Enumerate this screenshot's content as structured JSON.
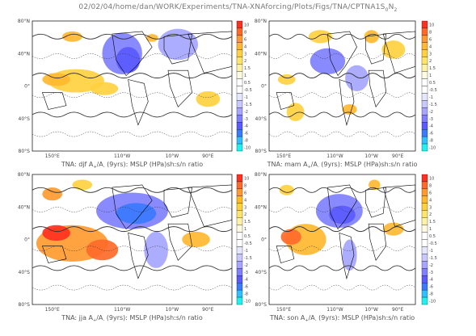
{
  "title": "02/02/04/home/dan/WORK/Experiments/TNA-XNAforcing/Plots/Figs/TNA/CPTNA1",
  "title_suffix": "S",
  "title_sub1": "0",
  "title_tail": "N",
  "title_sub2": "2",
  "colorbar_labels": [
    "10",
    "8",
    "6",
    "4",
    "3",
    "2",
    "1.5",
    "1",
    "0.5",
    "-0.5",
    "-1",
    "-1.5",
    "-2",
    "-3",
    "-4",
    "-6",
    "-8",
    "-10"
  ],
  "colorbar_colors": [
    "#ff3020",
    "#ff6a2a",
    "#ff9a30",
    "#ffb830",
    "#ffd040",
    "#ffe66a",
    "#fff2a6",
    "#fffbe0",
    "#ffffff",
    "#ffffff",
    "#e6e6ff",
    "#c8c8ff",
    "#a6a6ff",
    "#8080ff",
    "#5a5aff",
    "#3a7aff",
    "#30c0ff",
    "#20f0f0"
  ],
  "chart_data": [
    {
      "type": "heatmap",
      "panel": "djf",
      "caption_prefix": "TNA: djf A",
      "caption_mid": "/A",
      "caption_suffix": " (9yrs): MSLP (HPa)sh:s/n ratio",
      "sub_plus": "+",
      "sub_minus": "-",
      "ytick_labels": [
        "80°N",
        "40°N",
        "0°",
        "40°S",
        "80°S"
      ],
      "xtick_labels": [
        "150°E",
        "110°W",
        "10°W",
        "90°E"
      ]
    },
    {
      "type": "heatmap",
      "panel": "mam",
      "caption_prefix": "TNA: mam A",
      "caption_mid": "/A",
      "caption_suffix": " (9yrs): MSLP (HPa)sh:s/n ratio",
      "sub_plus": "+",
      "sub_minus": "-",
      "ytick_labels": [
        "80°N",
        "40°N",
        "0°",
        "40°S",
        "80°S"
      ],
      "xtick_labels": [
        "150°E",
        "110°W",
        "10°W",
        "90°E"
      ]
    },
    {
      "type": "heatmap",
      "panel": "jja",
      "caption_prefix": "TNA: jja A",
      "caption_mid": "/A",
      "caption_suffix": " (9yrs): MSLP (HPa)sh:s/n ratio",
      "sub_plus": "+",
      "sub_minus": "-",
      "ytick_labels": [
        "80°N",
        "40°N",
        "0°",
        "40°S",
        "80°S"
      ],
      "xtick_labels": [
        "150°E",
        "110°W",
        "10°W",
        "90°E"
      ]
    },
    {
      "type": "heatmap",
      "panel": "son",
      "caption_prefix": "TNA: son A",
      "caption_mid": "/A",
      "caption_suffix": " (9yrs): MSLP (HPa)sh:s/n ratio",
      "sub_plus": "+",
      "sub_minus": "-",
      "ytick_labels": [
        "80°N",
        "40°N",
        "0°",
        "40°S",
        "80°S"
      ],
      "xtick_labels": [
        "150°E",
        "110°W",
        "10°W",
        "90°E"
      ]
    }
  ]
}
